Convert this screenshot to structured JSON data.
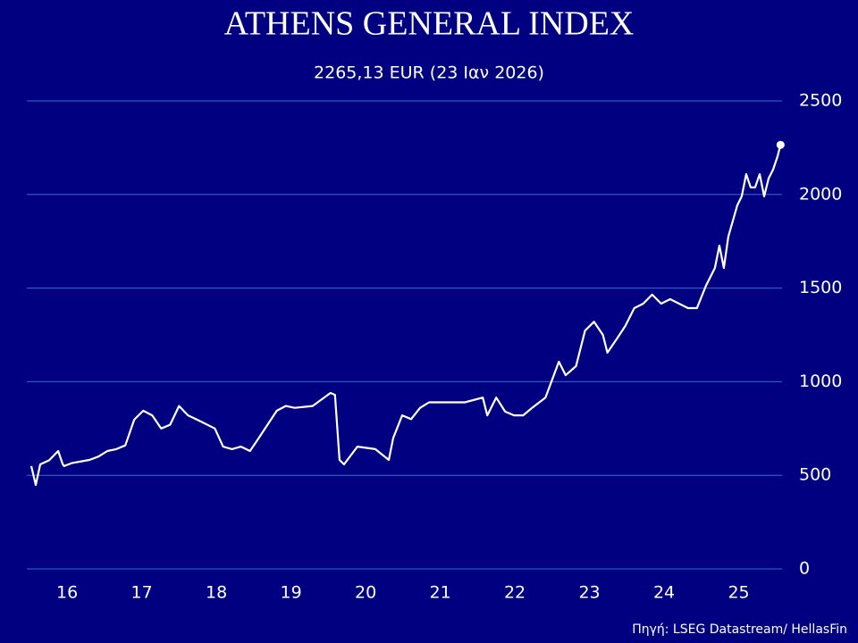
{
  "chart_data": {
    "type": "line",
    "title": "ATHENS GENERAL INDEX",
    "subtitle": "2265,13 EUR (23 Ιαν 2026)",
    "source": "Πηγή: LSEG Datastream/ HellasFin",
    "color": "#ffffff",
    "grid": true,
    "x": [
      16.02,
      16.08,
      16.14,
      16.26,
      16.38,
      16.44,
      16.46,
      16.56,
      16.8,
      16.92,
      17.04,
      17.16,
      17.28,
      17.4,
      17.52,
      17.64,
      17.76,
      17.88,
      18.0,
      18.12,
      18.24,
      18.48,
      18.59,
      18.71,
      18.83,
      18.95,
      19.07,
      19.31,
      19.43,
      19.55,
      19.79,
      20.03,
      20.09,
      20.15,
      20.21,
      20.39,
      20.63,
      20.81,
      20.87,
      20.99,
      21.11,
      21.23,
      21.35,
      21.59,
      21.83,
      22.07,
      22.13,
      22.25,
      22.37,
      22.49,
      22.61,
      22.73,
      22.91,
      23.09,
      23.18,
      23.32,
      23.44,
      23.56,
      23.68,
      23.74,
      23.86,
      23.98,
      24.1,
      24.22,
      24.34,
      24.46,
      24.58,
      24.7,
      24.82,
      24.94,
      25.06,
      25.18,
      25.24,
      25.3,
      25.36,
      25.48,
      25.54,
      25.6,
      25.66,
      25.72,
      25.78,
      25.84,
      25.9,
      25.96,
      26.02,
      26.06
    ],
    "values": [
      549,
      448,
      558,
      580,
      630,
      560,
      549,
      565,
      582,
      600,
      630,
      640,
      660,
      797,
      845,
      820,
      750,
      770,
      870,
      820,
      797,
      750,
      653,
      640,
      653,
      630,
      700,
      845,
      870,
      860,
      870,
      940,
      930,
      582,
      558,
      653,
      640,
      582,
      700,
      820,
      800,
      860,
      890,
      890,
      890,
      915,
      820,
      915,
      840,
      820,
      820,
      860,
      915,
      1107,
      1035,
      1083,
      1273,
      1320,
      1250,
      1155,
      1225,
      1298,
      1393,
      1417,
      1465,
      1417,
      1441,
      1417,
      1393,
      1393,
      1512,
      1608,
      1727,
      1608,
      1775,
      1942,
      1990,
      2109,
      2038,
      2038,
      2109,
      1990,
      2086,
      2133,
      2204,
      2265.13
    ],
    "xlim": [
      15.96,
      26.08
    ],
    "xticks": [
      {
        "value": 16.5,
        "label": "16"
      },
      {
        "value": 17.5,
        "label": "17"
      },
      {
        "value": 18.5,
        "label": "18"
      },
      {
        "value": 19.5,
        "label": "19"
      },
      {
        "value": 20.5,
        "label": "20"
      },
      {
        "value": 21.5,
        "label": "21"
      },
      {
        "value": 22.5,
        "label": "22"
      },
      {
        "value": 23.5,
        "label": "23"
      },
      {
        "value": 24.5,
        "label": "24"
      },
      {
        "value": 25.5,
        "label": "25"
      }
    ],
    "ylim": [
      0,
      2500
    ],
    "yticks": [
      0,
      500,
      1000,
      1500,
      2000,
      2500
    ]
  }
}
